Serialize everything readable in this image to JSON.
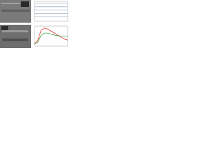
{
  "chart_data": [
    {
      "type": "line",
      "x": [
        0,
        10
      ],
      "xlim": [
        0,
        10
      ],
      "ylim": [
        0,
        10
      ],
      "series": [
        {
          "color": "#9fb3c8",
          "values": [
            9,
            9
          ]
        },
        {
          "color": "#9fb3c8",
          "values": [
            7.3,
            7.3
          ]
        },
        {
          "color": "#9fb3c8",
          "values": [
            5.6,
            5.6
          ]
        },
        {
          "color": "#9fb3c8",
          "values": [
            3.9,
            3.9
          ]
        },
        {
          "color": "#9fb3c8",
          "values": [
            2.2,
            2.2
          ]
        }
      ]
    },
    {
      "type": "line",
      "x": [
        0,
        1,
        2,
        3,
        4,
        5,
        6,
        7,
        8,
        9,
        10
      ],
      "xlim": [
        0,
        10
      ],
      "ylim": [
        0,
        10
      ],
      "series": [
        {
          "color": "#e03030",
          "values": [
            1,
            3,
            8,
            9,
            8.5,
            7.5,
            6.5,
            5.5,
            4.5,
            3.5,
            3
          ]
        },
        {
          "color": "#40a040",
          "values": [
            1,
            2,
            5.5,
            6.5,
            6.5,
            6,
            5.5,
            5.2,
            5,
            5,
            5
          ]
        }
      ]
    }
  ]
}
